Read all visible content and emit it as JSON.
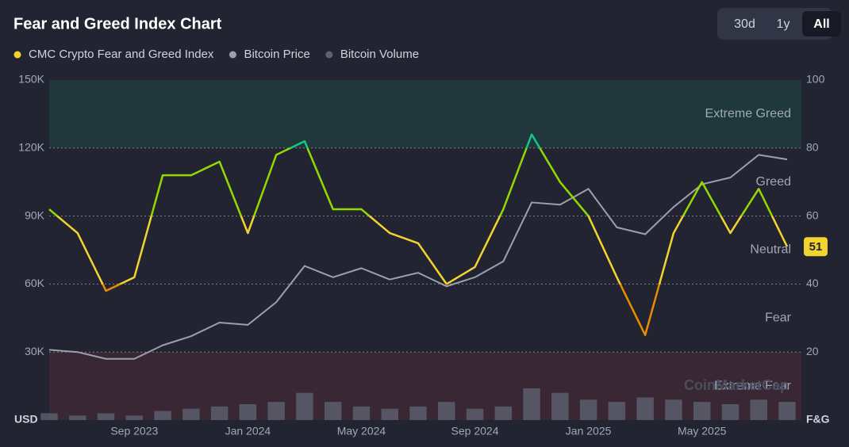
{
  "chart_data": {
    "type": "line",
    "title": "Fear and Greed Index Chart",
    "range_buttons": [
      "30d",
      "1y",
      "All"
    ],
    "selected_range": "All",
    "y_unit_label": "USD",
    "y2_unit_label": "F&G",
    "watermark": "CoinMarketCap",
    "x": [
      "2023-06",
      "2023-07",
      "2023-08",
      "2023-09",
      "2023-10",
      "2023-11",
      "2023-12",
      "2024-01",
      "2024-02",
      "2024-03",
      "2024-04",
      "2024-05",
      "2024-06",
      "2024-07",
      "2024-08",
      "2024-09",
      "2024-10",
      "2024-11",
      "2024-12",
      "2025-01",
      "2025-02",
      "2025-03",
      "2025-04",
      "2025-05",
      "2025-06",
      "2025-07",
      "2025-08"
    ],
    "xlim": [
      "2023-06",
      "2025-08"
    ],
    "xticks": [
      {
        "value": "2023-09",
        "label": "Sep 2023"
      },
      {
        "value": "2024-01",
        "label": "Jan 2024"
      },
      {
        "value": "2024-05",
        "label": "May 2024"
      },
      {
        "value": "2024-09",
        "label": "Sep 2024"
      },
      {
        "value": "2025-01",
        "label": "Jan 2025"
      },
      {
        "value": "2025-05",
        "label": "May 2025"
      }
    ],
    "ylim": [
      0,
      150000
    ],
    "yticks": [
      {
        "value": 30000,
        "label": "30K"
      },
      {
        "value": 60000,
        "label": "60K"
      },
      {
        "value": 90000,
        "label": "90K"
      },
      {
        "value": 120000,
        "label": "120K"
      },
      {
        "value": 150000,
        "label": "150K"
      }
    ],
    "y2lim": [
      0,
      100
    ],
    "y2ticks": [
      20,
      40,
      60,
      80,
      100
    ],
    "grid": true,
    "legend_position": "top-left",
    "zones": [
      {
        "label": "Extreme Greed",
        "from": 80,
        "to": 100,
        "color": "#16c784"
      },
      {
        "label": "Greed",
        "from": 60,
        "to": 80,
        "color": "#93d900"
      },
      {
        "label": "Neutral",
        "from": 40,
        "to": 60,
        "color": "#f3d42f"
      },
      {
        "label": "Fear",
        "from": 20,
        "to": 40,
        "color": "#ea8c00"
      },
      {
        "label": "Extreme Fear",
        "from": 0,
        "to": 20,
        "color": "#ea3943"
      }
    ],
    "current_value": 51,
    "series": [
      {
        "name": "CMC Crypto Fear and Greed Index",
        "color": "#f3d42f",
        "axis": "y2",
        "kind": "line",
        "values": [
          62,
          55,
          38,
          42,
          72,
          72,
          76,
          55,
          78,
          82,
          62,
          62,
          55,
          52,
          40,
          45,
          62,
          84,
          70,
          60,
          42,
          25,
          55,
          70,
          55,
          68,
          51
        ]
      },
      {
        "name": "Bitcoin Price",
        "color": "#9ca0ae",
        "axis": "y",
        "kind": "line",
        "values": [
          31000,
          30000,
          27000,
          27000,
          33000,
          37000,
          43000,
          42000,
          52000,
          68000,
          63000,
          67000,
          62000,
          65000,
          59000,
          63000,
          70000,
          96000,
          95000,
          102000,
          85000,
          82000,
          94000,
          104000,
          107000,
          117000,
          115000
        ]
      },
      {
        "name": "Bitcoin Volume",
        "color": "#5e6270",
        "axis": "y",
        "kind": "bar",
        "values": [
          3000,
          2000,
          3000,
          2000,
          4000,
          5000,
          6000,
          7000,
          8000,
          12000,
          8000,
          6000,
          5000,
          6000,
          8000,
          5000,
          6000,
          14000,
          12000,
          9000,
          8000,
          10000,
          9000,
          8000,
          7000,
          9000,
          8000
        ]
      }
    ]
  }
}
